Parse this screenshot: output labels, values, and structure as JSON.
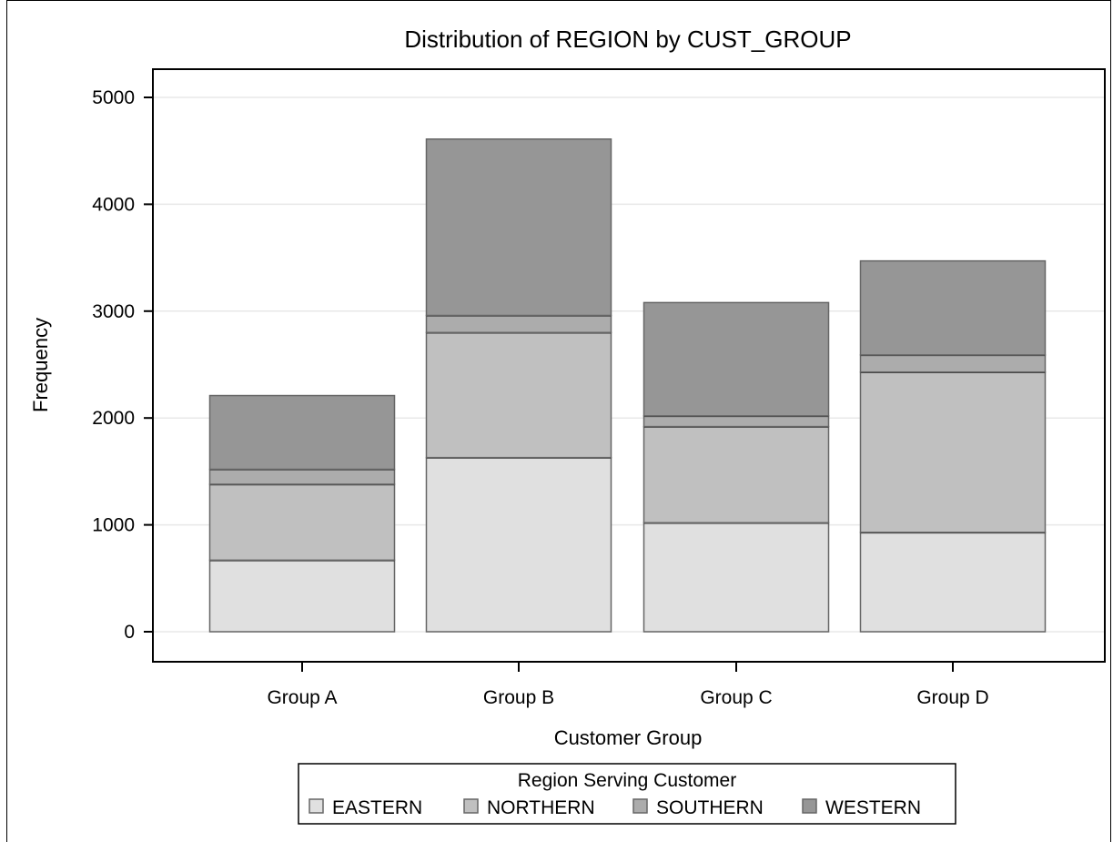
{
  "chart_data": {
    "type": "bar",
    "stacked": true,
    "title": "Distribution of REGION by CUST_GROUP",
    "xlabel": "Customer Group",
    "ylabel": "Frequency",
    "ylim": [
      0,
      5200
    ],
    "yticks": [
      0,
      1000,
      2000,
      3000,
      4000,
      5000
    ],
    "grid": true,
    "categories": [
      "Group A",
      "Group B",
      "Group C",
      "Group D"
    ],
    "series": [
      {
        "name": "EASTERN",
        "color": "#e0e0e0",
        "values": [
          670,
          1630,
          1020,
          930
        ]
      },
      {
        "name": "NORTHERN",
        "color": "#c0c0c0",
        "values": [
          710,
          1170,
          900,
          1500
        ]
      },
      {
        "name": "SOUTHERN",
        "color": "#acacac",
        "values": [
          140,
          160,
          100,
          160
        ]
      },
      {
        "name": "WESTERN",
        "color": "#969696",
        "values": [
          690,
          1650,
          1060,
          880
        ]
      }
    ],
    "legend": {
      "title": "Region Serving Customer",
      "placement": "bottom"
    }
  }
}
